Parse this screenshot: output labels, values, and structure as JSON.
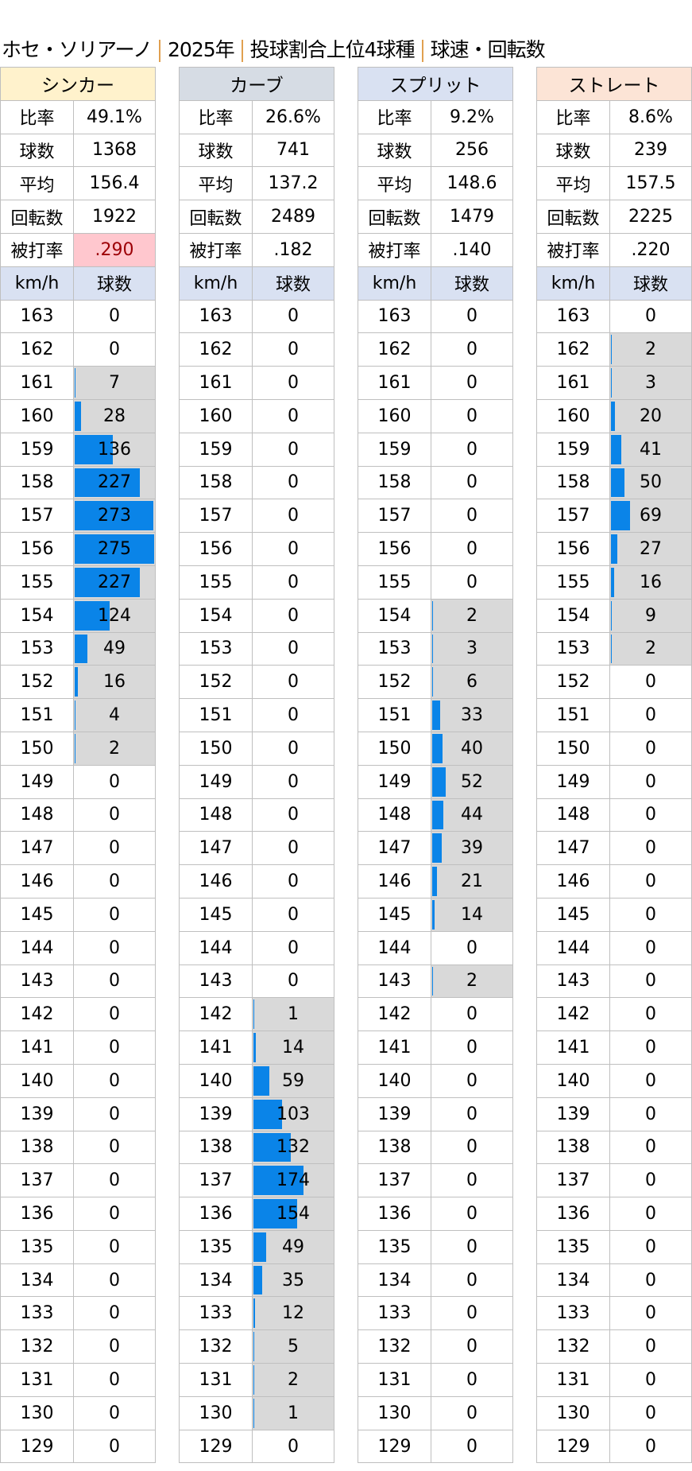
{
  "title": {
    "parts": [
      "ホセ・ソリアーノ",
      "2025年",
      "投球割合上位4球種",
      "球速・回転数"
    ],
    "separator_color": "#E0A050"
  },
  "colors": {
    "bar": "#0A84E8",
    "bar_bg": "#D9D9D9",
    "speed_header_bg": "#D9E1F2",
    "highlight_bg": "#FFC7CE",
    "highlight_text": "#9C0006"
  },
  "stat_labels": [
    "比率",
    "球数",
    "平均",
    "回転数",
    "被打率"
  ],
  "speed_header": {
    "speed": "km/h",
    "count": "球数"
  },
  "speeds": [
    163,
    162,
    161,
    160,
    159,
    158,
    157,
    156,
    155,
    154,
    153,
    152,
    151,
    150,
    149,
    148,
    147,
    146,
    145,
    144,
    143,
    142,
    141,
    140,
    139,
    138,
    137,
    136,
    135,
    134,
    133,
    132,
    131,
    130,
    129
  ],
  "bar_scale_max": 275,
  "pitches": [
    {
      "name": "シンカー",
      "header_color": "#FFF2CC",
      "stats": [
        "49.1%",
        "1368",
        "156.4",
        "1922",
        ".290"
      ],
      "highlight_stat": 4,
      "counts": [
        0,
        0,
        7,
        28,
        136,
        227,
        273,
        275,
        227,
        124,
        49,
        16,
        4,
        2,
        0,
        0,
        0,
        0,
        0,
        0,
        0,
        0,
        0,
        0,
        0,
        0,
        0,
        0,
        0,
        0,
        0,
        0,
        0,
        0,
        0
      ]
    },
    {
      "name": "カーブ",
      "header_color": "#D6DCE4",
      "stats": [
        "26.6%",
        "741",
        "137.2",
        "2489",
        ".182"
      ],
      "counts": [
        0,
        0,
        0,
        0,
        0,
        0,
        0,
        0,
        0,
        0,
        0,
        0,
        0,
        0,
        0,
        0,
        0,
        0,
        0,
        0,
        0,
        1,
        14,
        59,
        103,
        132,
        174,
        154,
        49,
        35,
        12,
        5,
        2,
        1,
        0
      ]
    },
    {
      "name": "スプリット",
      "header_color": "#D9E1F2",
      "stats": [
        "9.2%",
        "256",
        "148.6",
        "1479",
        ".140"
      ],
      "counts": [
        0,
        0,
        0,
        0,
        0,
        0,
        0,
        0,
        0,
        2,
        3,
        6,
        33,
        40,
        52,
        44,
        39,
        21,
        14,
        0,
        2,
        0,
        0,
        0,
        0,
        0,
        0,
        0,
        0,
        0,
        0,
        0,
        0,
        0,
        0
      ]
    },
    {
      "name": "ストレート",
      "header_color": "#FCE4D6",
      "stats": [
        "8.6%",
        "239",
        "157.5",
        "2225",
        ".220"
      ],
      "counts": [
        0,
        2,
        3,
        20,
        41,
        50,
        69,
        27,
        16,
        9,
        2,
        0,
        0,
        0,
        0,
        0,
        0,
        0,
        0,
        0,
        0,
        0,
        0,
        0,
        0,
        0,
        0,
        0,
        0,
        0,
        0,
        0,
        0,
        0,
        0
      ]
    }
  ]
}
